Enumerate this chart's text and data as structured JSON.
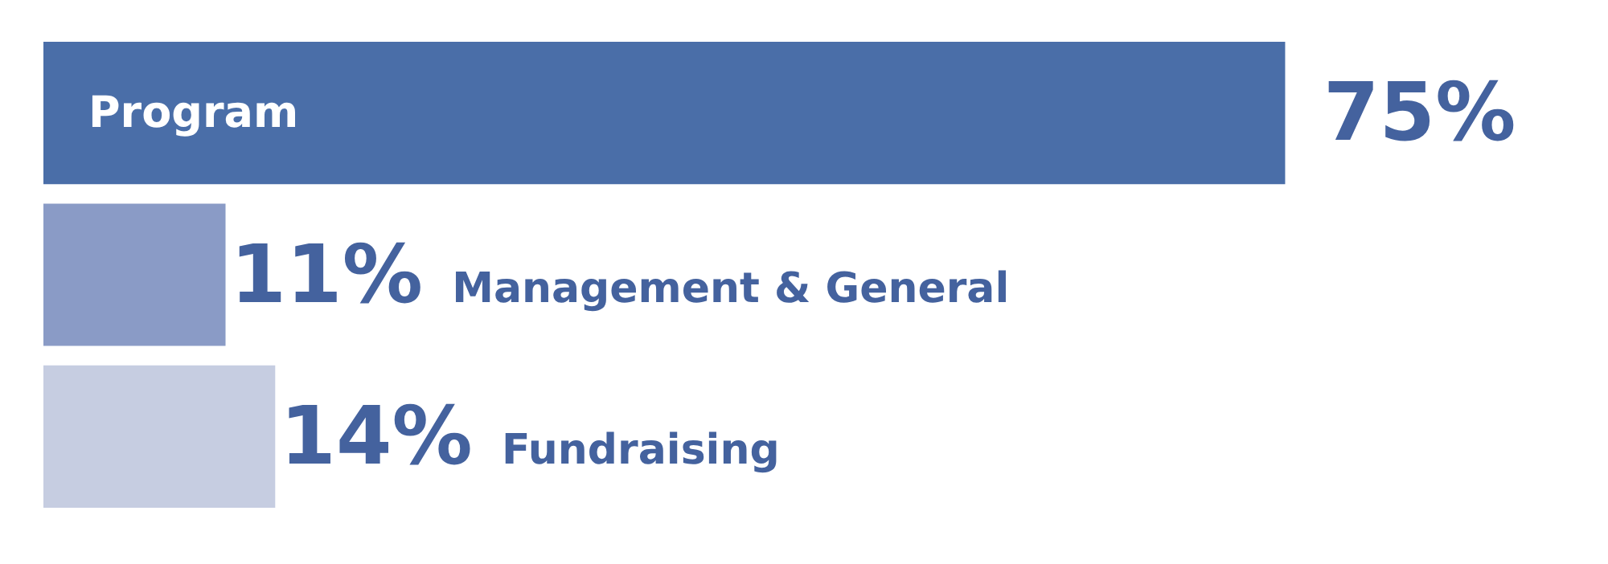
{
  "chart_data": {
    "type": "bar",
    "orientation": "horizontal",
    "categories": [
      "Program",
      "Management & General",
      "Fundraising"
    ],
    "values": [
      75,
      11,
      14
    ],
    "colors": [
      "#4a6ea8",
      "#8a9bc6",
      "#c6cde1"
    ],
    "value_labels": [
      "75%",
      "11%",
      "14%"
    ],
    "xlim": [
      0,
      94.5
    ]
  }
}
